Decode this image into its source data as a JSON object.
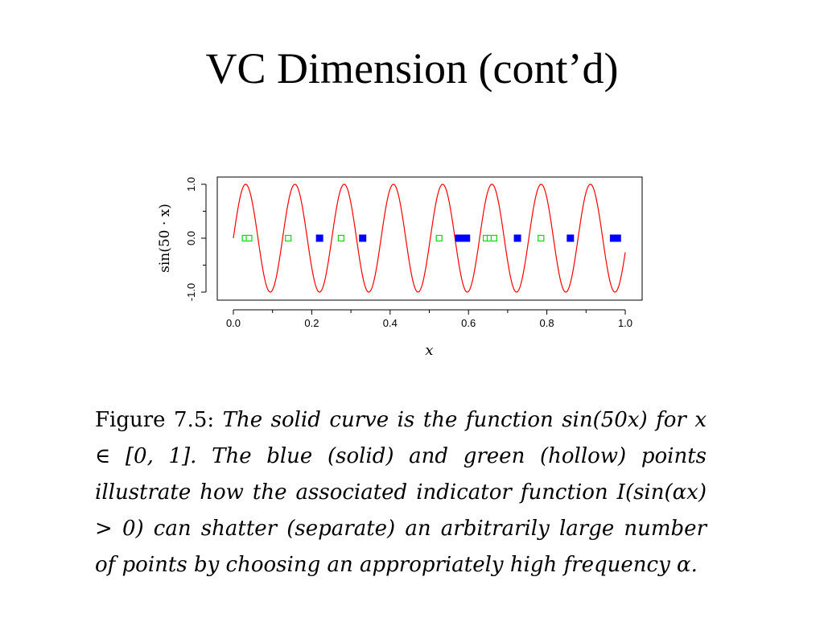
{
  "slide": {
    "title": "VC Dimension (cont’d)"
  },
  "chart_data": {
    "type": "line",
    "title": "",
    "xlabel": "x",
    "ylabel": "sin(50 · x)",
    "xlim": [
      0,
      1
    ],
    "ylim": [
      -1.1,
      1.1
    ],
    "x_ticks": [
      "0.0",
      "0.2",
      "0.4",
      "0.6",
      "0.8",
      "1.0"
    ],
    "y_ticks": [
      "-1.0",
      "0.0",
      "1.0"
    ],
    "grid": false,
    "legend": "none",
    "series": [
      {
        "function": "sin(50x)",
        "frequency": 50,
        "x_range": [
          0,
          1
        ],
        "color": "#ff0000"
      }
    ],
    "points": {
      "y": 0,
      "blue_solid": [
        0.22,
        0.33,
        0.575,
        0.585,
        0.595,
        0.725,
        0.86,
        0.97,
        0.98
      ],
      "green_hollow": [
        0.03,
        0.04,
        0.14,
        0.275,
        0.525,
        0.645,
        0.655,
        0.665,
        0.785
      ]
    },
    "colors": {
      "curve": "#ff0000",
      "solid_points": "#0000ff",
      "hollow_points": "#00dd00"
    }
  },
  "caption": {
    "label": "Figure 7.5:",
    "text": "The solid curve is the function sin(50x) for x ∈ [0, 1]. The blue (solid) and green (hollow) points illustrate how the associated indicator function I(sin(αx) > 0) can shatter (separate) an arbitrarily large number of points by choosing an appropriately high frequency α."
  }
}
